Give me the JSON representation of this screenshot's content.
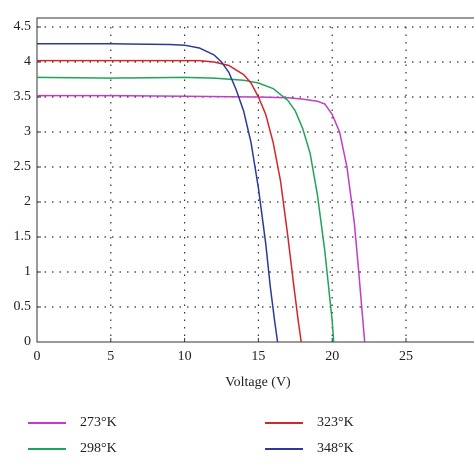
{
  "chart_data": {
    "type": "line",
    "xlabel": "Voltage (V)",
    "xlim": [
      0,
      30
    ],
    "xticks": [
      0,
      5,
      10,
      15,
      20,
      25
    ],
    "ylim": [
      0,
      4.5
    ],
    "yticks": [
      0,
      0.5,
      1,
      1.5,
      2,
      2.5,
      3,
      3.5,
      4,
      4.5
    ],
    "grid": true,
    "series": [
      {
        "name": "273°K",
        "color": "#c23cc8",
        "x": [
          0,
          5,
          10,
          15,
          17,
          18,
          19,
          19.5,
          20,
          20.5,
          21,
          21.5,
          21.8,
          22,
          22.2
        ],
        "values": [
          3.52,
          3.52,
          3.51,
          3.5,
          3.49,
          3.47,
          3.44,
          3.4,
          3.25,
          3.0,
          2.5,
          1.7,
          1.0,
          0.5,
          0
        ]
      },
      {
        "name": "298°K",
        "color": "#1fa35a",
        "x": [
          0,
          5,
          10,
          12,
          14,
          15,
          16,
          17,
          17.5,
          18,
          18.5,
          19,
          19.5,
          19.8,
          20,
          20.1
        ],
        "values": [
          3.78,
          3.77,
          3.78,
          3.77,
          3.74,
          3.7,
          3.62,
          3.45,
          3.3,
          3.05,
          2.7,
          2.1,
          1.3,
          0.7,
          0.3,
          0
        ]
      },
      {
        "name": "323°K",
        "color": "#d2262b",
        "x": [
          0,
          5,
          10,
          11,
          12,
          13,
          14,
          14.5,
          15,
          15.5,
          16,
          16.5,
          17,
          17.4,
          17.7,
          17.9
        ],
        "values": [
          4.02,
          4.02,
          4.02,
          4.02,
          4.0,
          3.95,
          3.82,
          3.7,
          3.5,
          3.25,
          2.85,
          2.3,
          1.5,
          0.8,
          0.3,
          0
        ]
      },
      {
        "name": "348°K",
        "color": "#2b3a9a",
        "x": [
          0,
          5,
          9,
          10,
          11,
          12,
          12.5,
          13,
          13.5,
          14,
          14.5,
          15,
          15.5,
          15.8,
          16.1,
          16.3
        ],
        "values": [
          4.26,
          4.26,
          4.25,
          4.24,
          4.2,
          4.1,
          4.0,
          3.85,
          3.6,
          3.3,
          2.85,
          2.2,
          1.4,
          0.8,
          0.3,
          0
        ]
      }
    ]
  }
}
